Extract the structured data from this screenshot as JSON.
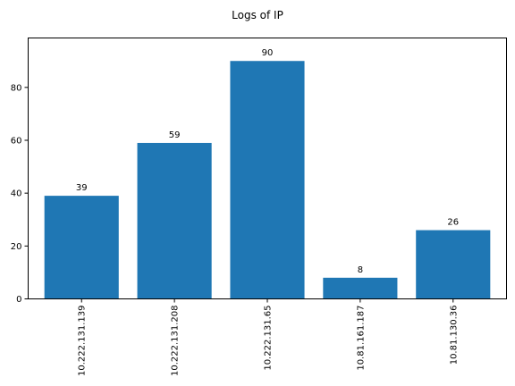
{
  "chart_data": {
    "type": "bar",
    "title": "Logs of IP",
    "xlabel": "",
    "ylabel": "",
    "categories": [
      "10.222.131.139",
      "10.222.131.208",
      "10.222.131.65",
      "10.81.161.187",
      "10.81.130.36"
    ],
    "values": [
      39,
      59,
      90,
      8,
      26
    ],
    "data_labels": [
      "39",
      "59",
      "90",
      "8",
      "26"
    ],
    "ylim": [
      0,
      98.7
    ],
    "yticks": [
      0,
      20,
      40,
      60,
      80
    ],
    "bar_color": "#1f77b4",
    "grid": false,
    "x_tick_rotation": "vertical"
  }
}
